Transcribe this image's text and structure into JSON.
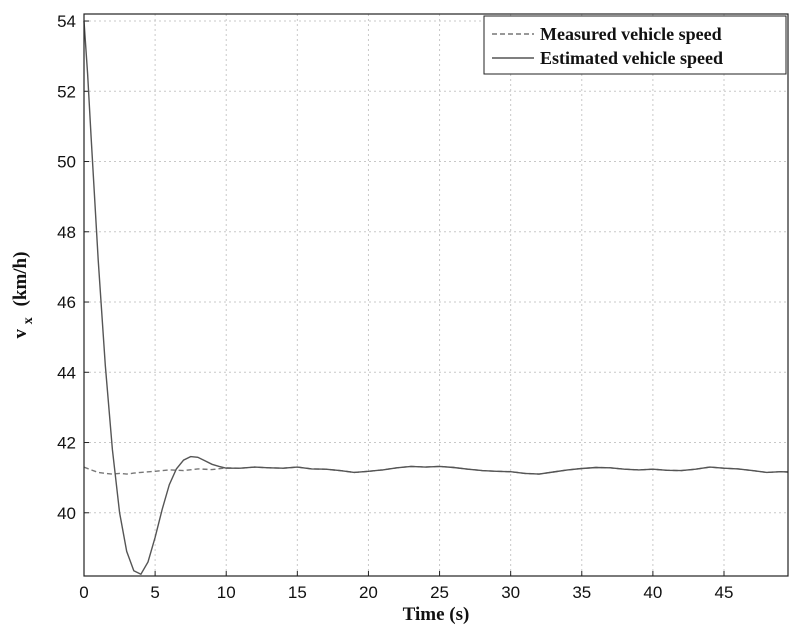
{
  "chart_data": {
    "type": "line",
    "xlabel": "Time (s)",
    "ylabel_main": "v",
    "ylabel_sub": "x",
    "ylabel_unit": "(km/h)",
    "xlim": [
      0,
      49.5
    ],
    "ylim": [
      38.2,
      54.2
    ],
    "xticks": [
      0,
      5,
      10,
      15,
      20,
      25,
      30,
      35,
      40,
      45
    ],
    "yticks": [
      40,
      42,
      44,
      46,
      48,
      50,
      52,
      54
    ],
    "grid": true,
    "legend_position": "top-right",
    "series": [
      {
        "name": "Measured vehicle speed",
        "style": "dashed",
        "color": "#777777",
        "x": [
          0,
          0.5,
          1,
          1.5,
          2,
          2.5,
          3,
          3.5,
          4,
          5,
          6,
          7,
          8,
          9,
          10,
          11,
          12,
          13,
          14,
          15,
          16,
          17,
          18,
          19,
          20,
          21,
          22,
          23,
          24,
          25,
          26,
          27,
          28,
          29,
          30,
          31,
          32,
          33,
          34,
          35,
          36,
          37,
          38,
          39,
          40,
          41,
          42,
          43,
          44,
          45,
          46,
          47,
          48,
          49,
          49.5
        ],
        "y": [
          41.3,
          41.22,
          41.15,
          41.12,
          41.1,
          41.12,
          41.1,
          41.13,
          41.15,
          41.18,
          41.22,
          41.2,
          41.25,
          41.23,
          41.28,
          41.27,
          41.3,
          41.28,
          41.27,
          41.3,
          41.25,
          41.24,
          41.2,
          41.15,
          41.18,
          41.22,
          41.28,
          41.32,
          41.3,
          41.32,
          41.29,
          41.24,
          41.2,
          41.18,
          41.17,
          41.12,
          41.1,
          41.16,
          41.22,
          41.26,
          41.29,
          41.28,
          41.24,
          41.22,
          41.24,
          41.21,
          41.2,
          41.24,
          41.3,
          41.27,
          41.25,
          41.2,
          41.15,
          41.17,
          41.16
        ]
      },
      {
        "name": "Estimated vehicle speed",
        "style": "solid",
        "color": "#555555",
        "x": [
          0,
          0.25,
          0.5,
          1,
          1.5,
          2,
          2.5,
          3,
          3.5,
          4,
          4.5,
          5,
          5.5,
          6,
          6.5,
          7,
          7.5,
          8,
          8.5,
          9,
          9.5,
          10,
          11,
          12,
          13,
          14,
          15,
          16,
          17,
          18,
          19,
          20,
          21,
          22,
          23,
          24,
          25,
          26,
          27,
          28,
          29,
          30,
          31,
          32,
          33,
          34,
          35,
          36,
          37,
          38,
          39,
          40,
          41,
          42,
          43,
          44,
          45,
          46,
          47,
          48,
          49,
          49.5
        ],
        "y": [
          54.0,
          52.5,
          50.7,
          47.2,
          44.2,
          41.8,
          40.0,
          38.9,
          38.35,
          38.25,
          38.6,
          39.3,
          40.1,
          40.8,
          41.25,
          41.5,
          41.6,
          41.58,
          41.48,
          41.38,
          41.32,
          41.27,
          41.27,
          41.3,
          41.28,
          41.27,
          41.3,
          41.25,
          41.24,
          41.2,
          41.15,
          41.18,
          41.22,
          41.28,
          41.32,
          41.3,
          41.32,
          41.29,
          41.24,
          41.2,
          41.18,
          41.17,
          41.12,
          41.1,
          41.16,
          41.22,
          41.26,
          41.29,
          41.28,
          41.24,
          41.22,
          41.24,
          41.21,
          41.2,
          41.24,
          41.3,
          41.27,
          41.25,
          41.2,
          41.15,
          41.17,
          41.16
        ]
      }
    ]
  }
}
